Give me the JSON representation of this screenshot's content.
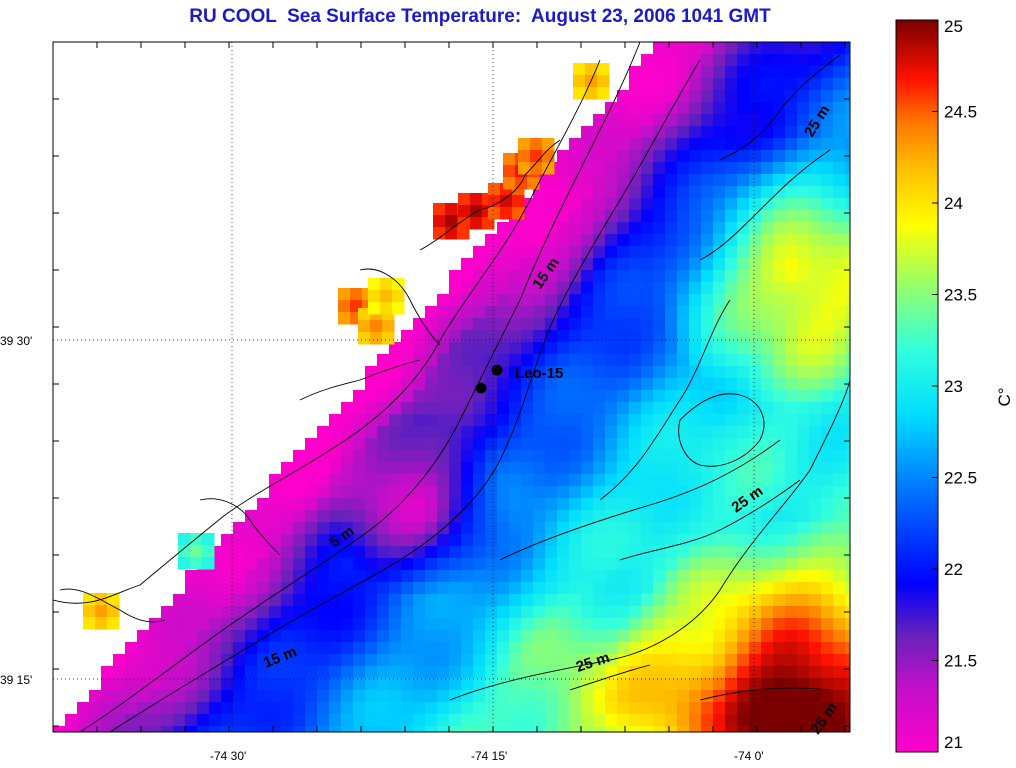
{
  "title": "RU COOL  Sea Surface Temperature:  August 23, 2006 1041 GMT",
  "map": {
    "lat_labels": [
      "39 30'",
      "39 15'"
    ],
    "lon_labels": [
      "-74 30'",
      "-74 15'",
      "-74 0'"
    ],
    "contour_labels": [
      "15 m",
      "25 m",
      "5 m",
      "15 m",
      "25 m",
      "25 m",
      "25 m"
    ],
    "station_label": "Leo-15"
  },
  "colorbar": {
    "unit": "C°",
    "ticks": [
      "25",
      "24.5",
      "24",
      "23.5",
      "23",
      "22.5",
      "22",
      "21.5",
      "21"
    ],
    "min": 21,
    "max": 25,
    "colormap": [
      "#ff00cc",
      "#6622bb",
      "#0000ff",
      "#00aaff",
      "#00ffff",
      "#66ff99",
      "#ffff00",
      "#ff8800",
      "#ff0000",
      "#800000"
    ]
  }
}
